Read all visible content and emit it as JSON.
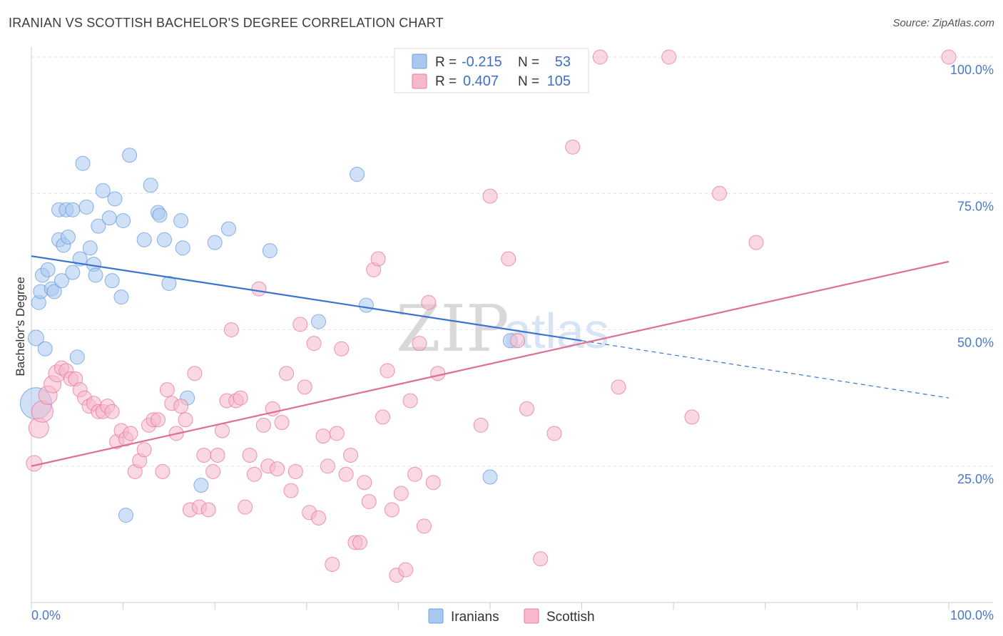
{
  "header": {
    "title": "IRANIAN VS SCOTTISH BACHELOR'S DEGREE CORRELATION CHART",
    "source": "Source: ZipAtlas.com"
  },
  "watermark": {
    "zip": "ZIP",
    "atlas": "atlas"
  },
  "legend_top": {
    "r_label": "R =",
    "n_label": "N =",
    "rows": [
      {
        "r": "-0.215",
        "n": "53",
        "color": "#a9c8f0"
      },
      {
        "r": "0.407",
        "n": "105",
        "color": "#f6b8cb"
      }
    ]
  },
  "legend_bottom": [
    {
      "label": "Iranians",
      "color": "#a9c8f0"
    },
    {
      "label": "Scottish",
      "color": "#f6b8cb"
    }
  ],
  "chart_data": {
    "type": "scatter",
    "title": "IRANIAN VS SCOTTISH BACHELOR'S DEGREE CORRELATION CHART",
    "xlabel": "",
    "ylabel": "Bachelor's Degree",
    "xlim": [
      0,
      100
    ],
    "ylim": [
      0,
      100
    ],
    "x_tick_labels": [
      "0.0%",
      "100.0%"
    ],
    "y_tick_labels": [
      "25.0%",
      "50.0%",
      "75.0%",
      "100.0%"
    ],
    "y_ticks": [
      25,
      50,
      75,
      100
    ],
    "grid": true,
    "series": [
      {
        "name": "Iranians",
        "color": "#6a9fe0",
        "fill": "#a9c8f0",
        "trend": {
          "x": [
            0,
            60
          ],
          "y": [
            63.5,
            48.0
          ],
          "dash_to": [
            100,
            37.5
          ]
        },
        "points": [
          [
            0.5,
            36.5,
            22
          ],
          [
            0.5,
            48.5,
            11
          ],
          [
            0.8,
            55,
            10
          ],
          [
            1,
            57,
            10
          ],
          [
            1.2,
            60,
            10
          ],
          [
            1.5,
            46.5,
            10
          ],
          [
            1.8,
            61,
            10
          ],
          [
            2.2,
            57.5,
            10
          ],
          [
            2.5,
            57,
            10
          ],
          [
            3,
            66.5,
            10
          ],
          [
            3,
            72,
            10
          ],
          [
            3.3,
            59,
            10
          ],
          [
            3.5,
            65.5,
            10
          ],
          [
            3.8,
            72,
            10
          ],
          [
            4,
            67,
            10
          ],
          [
            4.5,
            60.5,
            10
          ],
          [
            4.5,
            72,
            10
          ],
          [
            5,
            45,
            10
          ],
          [
            5.3,
            63,
            10
          ],
          [
            5.6,
            80.5,
            10
          ],
          [
            6,
            72.5,
            10
          ],
          [
            6.4,
            65,
            10
          ],
          [
            6.8,
            62,
            10
          ],
          [
            7,
            60,
            10
          ],
          [
            7.3,
            69,
            10
          ],
          [
            7.8,
            75.5,
            10
          ],
          [
            8.5,
            70.5,
            10
          ],
          [
            8.8,
            59,
            10
          ],
          [
            9.1,
            74,
            10
          ],
          [
            9.8,
            56,
            10
          ],
          [
            10,
            70,
            10
          ],
          [
            10.3,
            16,
            10
          ],
          [
            10.7,
            82,
            10
          ],
          [
            12.3,
            66.5,
            10
          ],
          [
            13,
            76.5,
            10
          ],
          [
            13.8,
            71.5,
            10
          ],
          [
            14,
            71,
            10
          ],
          [
            14.5,
            66.5,
            10
          ],
          [
            15,
            58.5,
            10
          ],
          [
            16.3,
            70,
            10
          ],
          [
            16.5,
            65,
            10
          ],
          [
            17,
            37.5,
            10
          ],
          [
            18.5,
            21.5,
            10
          ],
          [
            20,
            66,
            10
          ],
          [
            21.5,
            68.5,
            10
          ],
          [
            26,
            64.5,
            10
          ],
          [
            31.3,
            51.5,
            10
          ],
          [
            35.5,
            78.5,
            10
          ],
          [
            36.5,
            54.5,
            10
          ],
          [
            50,
            23,
            10
          ],
          [
            52.2,
            48,
            10
          ]
        ]
      },
      {
        "name": "Scottish",
        "color": "#e87ba0",
        "fill": "#f6b8cb",
        "trend": {
          "x": [
            0,
            100
          ],
          "y": [
            25.0,
            62.5
          ]
        },
        "points": [
          [
            0.3,
            25.5,
            11
          ],
          [
            0.8,
            32,
            14
          ],
          [
            1.2,
            35,
            15
          ],
          [
            1.8,
            38,
            13
          ],
          [
            2.3,
            40,
            12
          ],
          [
            2.8,
            42,
            12
          ],
          [
            3.3,
            43,
            10
          ],
          [
            3.8,
            42.5,
            10
          ],
          [
            4.3,
            41,
            10
          ],
          [
            4.8,
            41,
            10
          ],
          [
            5.3,
            39,
            10
          ],
          [
            5.8,
            37.5,
            10
          ],
          [
            6.3,
            36,
            10
          ],
          [
            6.8,
            36.5,
            10
          ],
          [
            7.3,
            35,
            10
          ],
          [
            7.8,
            35,
            10
          ],
          [
            8.3,
            36,
            10
          ],
          [
            8.8,
            35,
            10
          ],
          [
            9.3,
            29.5,
            10
          ],
          [
            9.8,
            31.5,
            10
          ],
          [
            10.3,
            30,
            10
          ],
          [
            10.8,
            31,
            10
          ],
          [
            11.3,
            24,
            10
          ],
          [
            11.8,
            26,
            10
          ],
          [
            12.3,
            28,
            10
          ],
          [
            12.8,
            32.5,
            10
          ],
          [
            13.3,
            33.5,
            10
          ],
          [
            13.8,
            33.5,
            10
          ],
          [
            14.3,
            24,
            10
          ],
          [
            14.8,
            39,
            10
          ],
          [
            15.3,
            36.5,
            10
          ],
          [
            15.8,
            31,
            10
          ],
          [
            16.3,
            36,
            10
          ],
          [
            16.8,
            33.5,
            10
          ],
          [
            17.3,
            17,
            10
          ],
          [
            17.8,
            42,
            10
          ],
          [
            18.3,
            17.5,
            10
          ],
          [
            18.8,
            27,
            10
          ],
          [
            19.3,
            17,
            10
          ],
          [
            19.8,
            24,
            10
          ],
          [
            20.3,
            27,
            10
          ],
          [
            20.8,
            31.5,
            10
          ],
          [
            21.3,
            37,
            10
          ],
          [
            21.8,
            50,
            10
          ],
          [
            22.3,
            37,
            10
          ],
          [
            22.8,
            37.5,
            10
          ],
          [
            23.3,
            17.5,
            10
          ],
          [
            23.8,
            27,
            10
          ],
          [
            24.3,
            23.5,
            10
          ],
          [
            24.8,
            57.5,
            10
          ],
          [
            25.3,
            32.5,
            10
          ],
          [
            25.8,
            25,
            10
          ],
          [
            26.3,
            35.5,
            10
          ],
          [
            26.8,
            24.5,
            10
          ],
          [
            27.3,
            33,
            10
          ],
          [
            27.8,
            42,
            10
          ],
          [
            28.3,
            20.5,
            10
          ],
          [
            28.8,
            24,
            10
          ],
          [
            29.3,
            51,
            10
          ],
          [
            29.8,
            39.5,
            10
          ],
          [
            30.3,
            16.5,
            10
          ],
          [
            30.8,
            47.5,
            10
          ],
          [
            31.3,
            15.5,
            10
          ],
          [
            31.8,
            30.5,
            10
          ],
          [
            32.3,
            25,
            10
          ],
          [
            32.8,
            7,
            10
          ],
          [
            33.3,
            31,
            10
          ],
          [
            33.8,
            46.5,
            10
          ],
          [
            34.3,
            23.5,
            10
          ],
          [
            34.8,
            27,
            10
          ],
          [
            35.3,
            11,
            10
          ],
          [
            35.8,
            11,
            10
          ],
          [
            36.3,
            22,
            10
          ],
          [
            36.8,
            18.5,
            10
          ],
          [
            37.3,
            61,
            10
          ],
          [
            37.8,
            63,
            10
          ],
          [
            38.3,
            34,
            10
          ],
          [
            38.8,
            42.5,
            10
          ],
          [
            39.3,
            17,
            10
          ],
          [
            39.8,
            5,
            10
          ],
          [
            40.3,
            20,
            10
          ],
          [
            40.8,
            6,
            10
          ],
          [
            41.3,
            37,
            10
          ],
          [
            41.8,
            23.5,
            10
          ],
          [
            42.3,
            47.5,
            10
          ],
          [
            42.8,
            14,
            10
          ],
          [
            43.3,
            55,
            10
          ],
          [
            43.8,
            22,
            10
          ],
          [
            44.3,
            42,
            10
          ],
          [
            49,
            32.5,
            10
          ],
          [
            50,
            74.5,
            10
          ],
          [
            52,
            63,
            10
          ],
          [
            53,
            48,
            10
          ],
          [
            54,
            35.5,
            10
          ],
          [
            55.5,
            8,
            10
          ],
          [
            57,
            31,
            10
          ],
          [
            59,
            83.5,
            10
          ],
          [
            62,
            100,
            10
          ],
          [
            64,
            39.5,
            10
          ],
          [
            69.5,
            100,
            10
          ],
          [
            72,
            34,
            10
          ],
          [
            75,
            75,
            10
          ],
          [
            79,
            66,
            10
          ],
          [
            100,
            100,
            10
          ]
        ]
      }
    ]
  }
}
